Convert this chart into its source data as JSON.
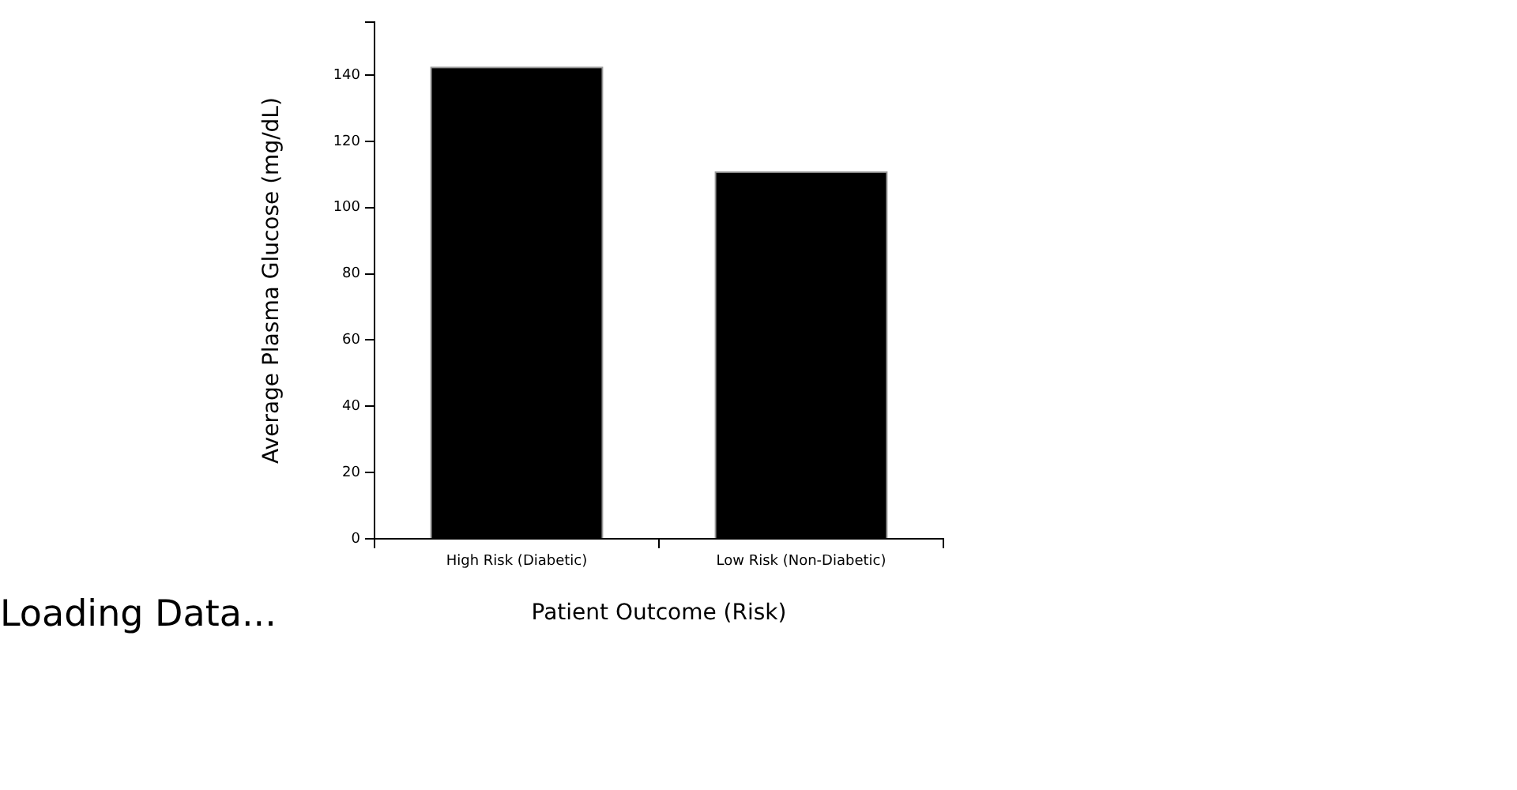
{
  "chart_data": {
    "type": "bar",
    "xlabel": "Patient Outcome (Risk)",
    "ylabel": "Average Plasma Glucose (mg/dL)",
    "categories": [
      "High Risk (Diabetic)",
      "Low Risk (Non-Diabetic)"
    ],
    "values": [
      142.6,
      111.0
    ],
    "color": "#000000",
    "ylim": [
      0,
      156
    ],
    "yticks": [
      0,
      20,
      40,
      60,
      80,
      100,
      120,
      140,
      {
        "value": 156,
        "label": null
      }
    ],
    "grid": false,
    "legend": false,
    "annotations": [
      "Loading Data..."
    ]
  }
}
